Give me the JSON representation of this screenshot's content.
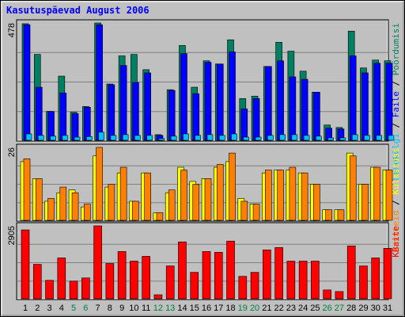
{
  "chart_data": [
    {
      "type": "bar",
      "title": "Kasutuspäevad August 2006",
      "legend_separator": " / ",
      "ylim": [
        0,
        478
      ],
      "yticks": [
        478
      ],
      "grid": true,
      "series": [
        {
          "name": "Pöördumisi",
          "color": "#008060",
          "values": [
            475,
            351,
            120,
            263,
            117,
            140,
            478,
            231,
            345,
            351,
            289,
            26,
            208,
            387,
            218,
            325,
            312,
            410,
            172,
            182,
            302,
            400,
            364,
            283,
            198,
            65,
            55,
            445,
            296,
            328,
            325
          ]
        },
        {
          "name": "Faile",
          "color": "#0000ff",
          "values": [
            471,
            218,
            120,
            195,
            111,
            137,
            471,
            228,
            306,
            237,
            276,
            23,
            205,
            354,
            192,
            319,
            312,
            361,
            130,
            172,
            302,
            325,
            260,
            250,
            198,
            52,
            49,
            345,
            276,
            315,
            315
          ]
        },
        {
          "name": "Lehekülgi",
          "color": "#00c0ff",
          "values": [
            29,
            23,
            20,
            23,
            16,
            18,
            36,
            23,
            26,
            23,
            23,
            10,
            20,
            29,
            23,
            26,
            23,
            29,
            16,
            16,
            23,
            26,
            26,
            23,
            20,
            13,
            13,
            26,
            23,
            23,
            23
          ]
        }
      ]
    },
    {
      "type": "bar",
      "legend_separator": " / ",
      "ylim": [
        0,
        26
      ],
      "yticks": [
        26
      ],
      "grid": true,
      "series": [
        {
          "name": "Külastusi",
          "color": "#ffff00",
          "values": [
            21,
            15,
            7,
            10,
            11,
            5,
            23,
            12,
            17,
            7,
            17,
            3,
            10,
            19,
            14,
            15,
            19,
            21,
            8,
            6,
            17,
            18,
            18,
            17,
            13,
            4,
            4,
            24,
            13,
            19,
            18
          ]
        },
        {
          "name": "Arvuteid",
          "color": "#ff8000",
          "values": [
            22,
            15,
            8,
            12,
            10,
            6,
            26,
            13,
            19,
            7,
            17,
            3,
            11,
            18,
            13,
            15,
            20,
            24,
            7,
            6,
            18,
            18,
            19,
            17,
            13,
            4,
            4,
            23,
            13,
            19,
            18
          ]
        }
      ]
    },
    {
      "type": "bar",
      "ylim": [
        0,
        2905
      ],
      "yticks": [
        2905
      ],
      "grid": true,
      "categories": [
        "1",
        "2",
        "3",
        "4",
        "5",
        "6",
        "7",
        "8",
        "9",
        "10",
        "11",
        "12",
        "13",
        "14",
        "15",
        "16",
        "17",
        "18",
        "19",
        "20",
        "21",
        "22",
        "23",
        "24",
        "25",
        "26",
        "27",
        "28",
        "29",
        "30",
        "31"
      ],
      "category_colors": [
        "#000000",
        "#000000",
        "#000000",
        "#000000",
        "#008040",
        "#008040",
        "#000000",
        "#000000",
        "#000000",
        "#000000",
        "#000000",
        "#008040",
        "#008040",
        "#000000",
        "#000000",
        "#000000",
        "#000000",
        "#000000",
        "#008040",
        "#008040",
        "#000000",
        "#000000",
        "#000000",
        "#000000",
        "#000000",
        "#008040",
        "#008040",
        "#000000",
        "#000000",
        "#000000",
        "#000000"
      ],
      "series": [
        {
          "name": "KBaite",
          "color": "#ff0000",
          "values": [
            2747,
            1389,
            758,
            1642,
            726,
            852,
            2905,
            1421,
            1895,
            1516,
            1705,
            189,
            1326,
            2273,
            1074,
            1895,
            1863,
            2305,
            916,
            1074,
            1958,
            2052,
            1516,
            1516,
            1516,
            379,
            316,
            2116,
            1326,
            1642,
            2021
          ]
        }
      ]
    }
  ]
}
